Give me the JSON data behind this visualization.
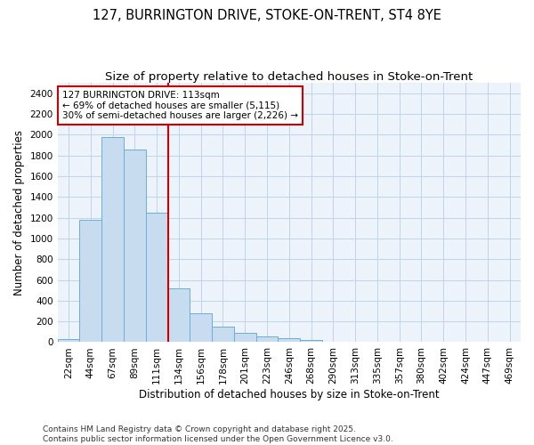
{
  "title1": "127, BURRINGTON DRIVE, STOKE-ON-TRENT, ST4 8YE",
  "title2": "Size of property relative to detached houses in Stoke-on-Trent",
  "xlabel": "Distribution of detached houses by size in Stoke-on-Trent",
  "ylabel": "Number of detached properties",
  "categories": [
    "22sqm",
    "44sqm",
    "67sqm",
    "89sqm",
    "111sqm",
    "134sqm",
    "156sqm",
    "178sqm",
    "201sqm",
    "223sqm",
    "246sqm",
    "268sqm",
    "290sqm",
    "313sqm",
    "335sqm",
    "357sqm",
    "380sqm",
    "402sqm",
    "424sqm",
    "447sqm",
    "469sqm"
  ],
  "values": [
    30,
    1175,
    1975,
    1860,
    1245,
    520,
    275,
    150,
    90,
    55,
    40,
    20,
    5,
    2,
    1,
    1,
    0,
    0,
    0,
    0,
    0
  ],
  "bar_color": "#c8dcf0",
  "bar_edge_color": "#6aaed6",
  "vline_color": "#cc0000",
  "annotation_title": "127 BURRINGTON DRIVE: 113sqm",
  "annotation_line1": "← 69% of detached houses are smaller (5,115)",
  "annotation_line2": "30% of semi-detached houses are larger (2,226) →",
  "annotation_box_color": "#cc0000",
  "ylim": [
    0,
    2500
  ],
  "yticks": [
    0,
    200,
    400,
    600,
    800,
    1000,
    1200,
    1400,
    1600,
    1800,
    2000,
    2200,
    2400
  ],
  "footer1": "Contains HM Land Registry data © Crown copyright and database right 2025.",
  "footer2": "Contains public sector information licensed under the Open Government Licence v3.0.",
  "bg_color": "#ffffff",
  "plot_bg_color": "#edf3fb",
  "grid_color": "#c0d4ea",
  "title1_fontsize": 10.5,
  "title2_fontsize": 9.5,
  "axis_label_fontsize": 8.5,
  "tick_fontsize": 7.5,
  "annotation_fontsize": 7.5,
  "footer_fontsize": 6.5
}
